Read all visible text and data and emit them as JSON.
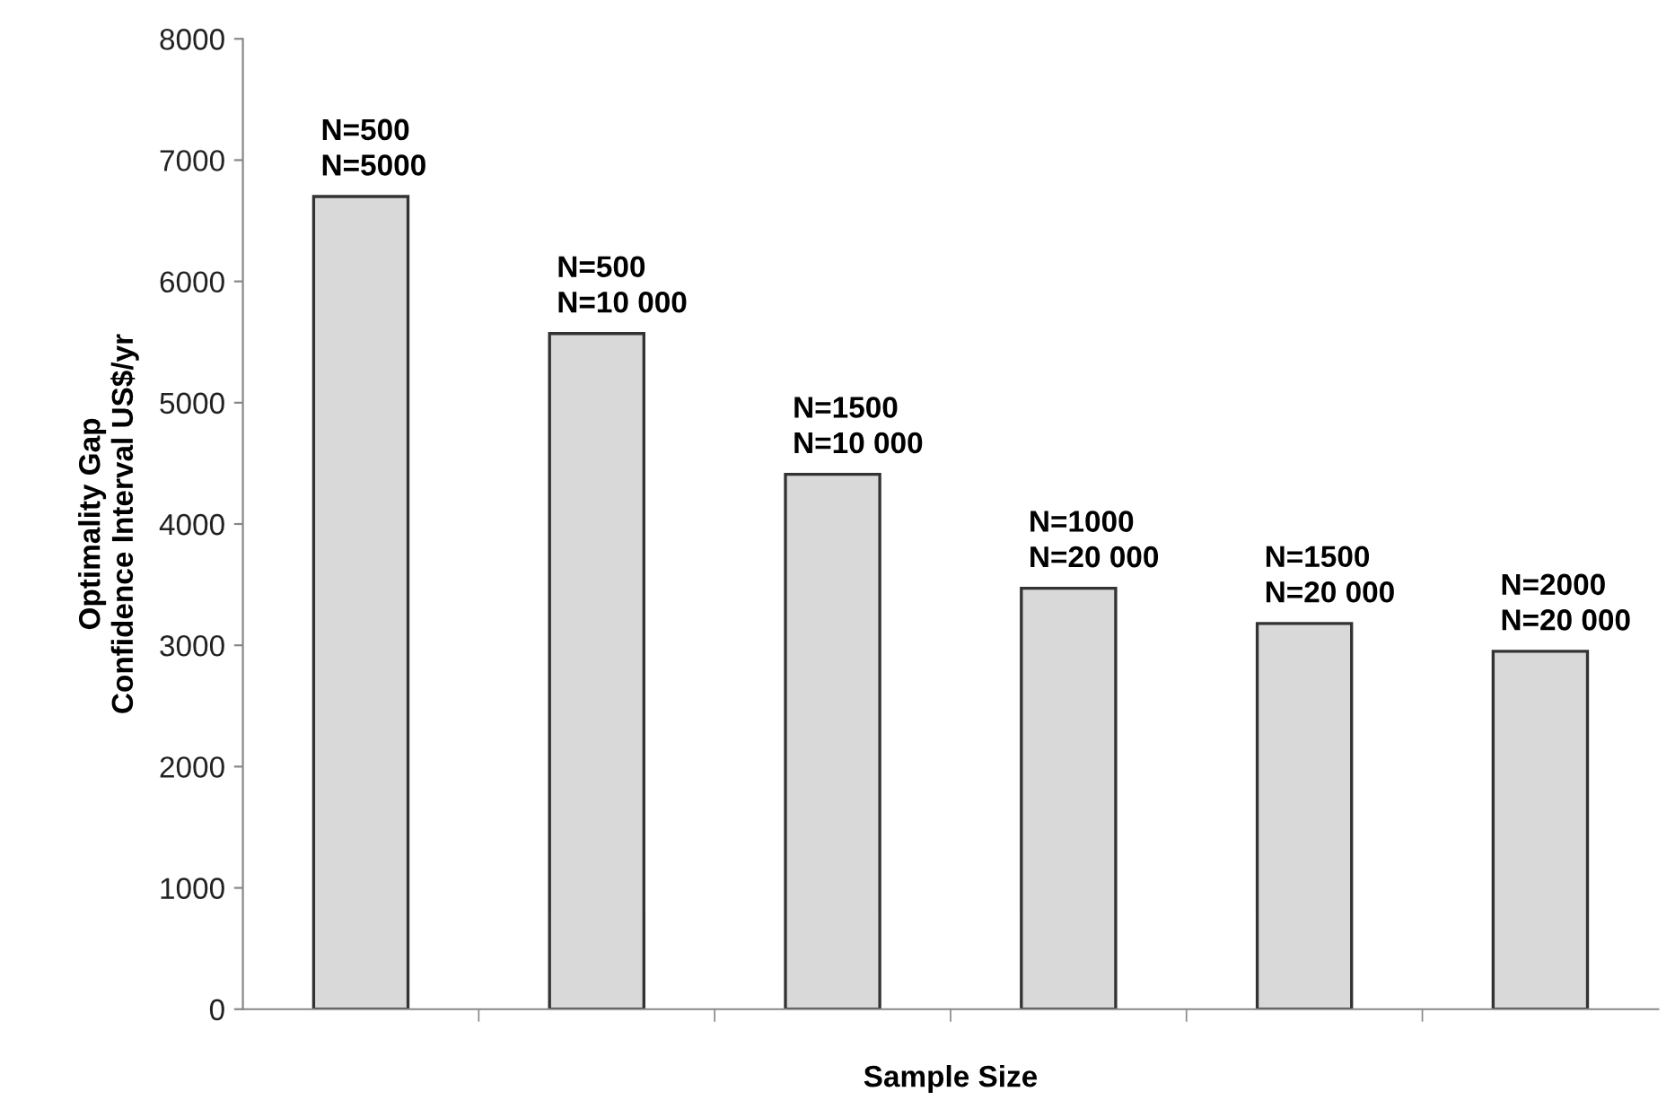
{
  "chart_data": {
    "type": "bar",
    "xlabel": "Sample Size",
    "ylabel": "Optimality Gap\nConfidence Interval US$/yr",
    "categories": [
      "N=500\nN=5000",
      "N=500\nN=10 000",
      "N=1500\nN=10 000",
      "N=1000\nN=20 000",
      "N=1500\nN=20 000",
      "N=2000\nN=20 000"
    ],
    "values": [
      6700,
      5570,
      4410,
      3470,
      3180,
      2950
    ],
    "color": "#d9d9d9",
    "ylim": [
      0,
      8000
    ],
    "yticks": [
      0,
      1000,
      2000,
      3000,
      4000,
      5000,
      6000,
      7000,
      8000
    ],
    "grid": false,
    "legend": false
  }
}
